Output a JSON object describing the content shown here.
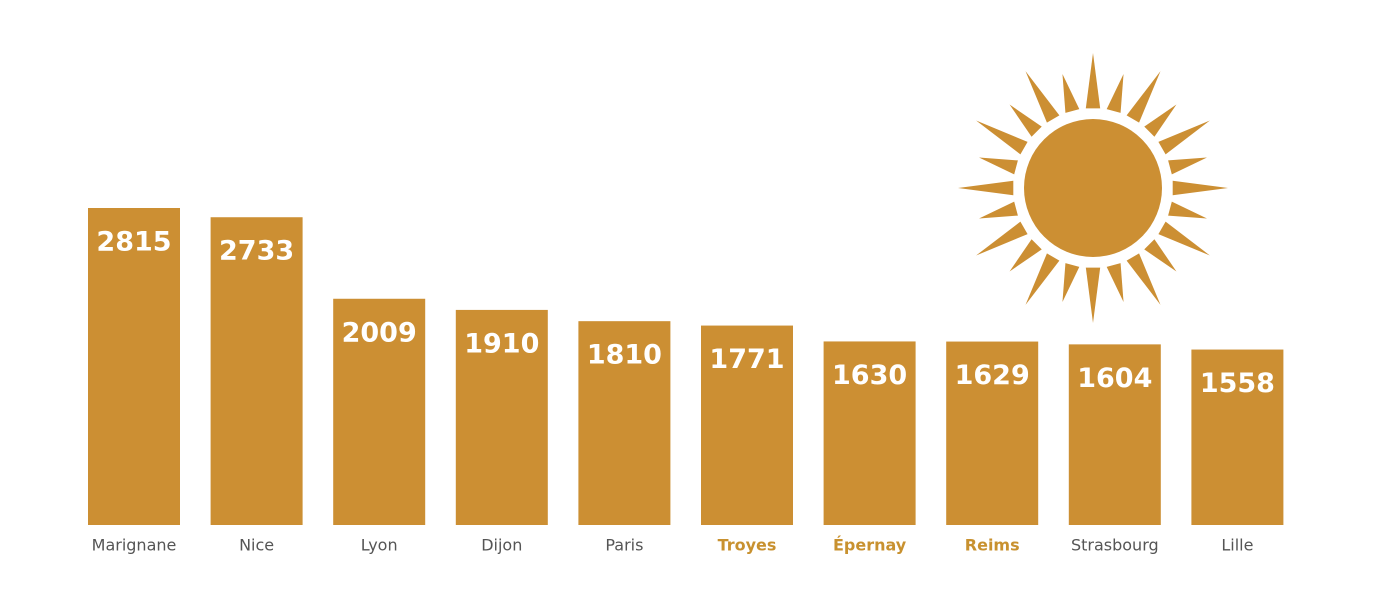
{
  "chart_data": {
    "type": "bar",
    "categories": [
      "Marignane",
      "Nice",
      "Lyon",
      "Dijon",
      "Paris",
      "Troyes",
      "Épernay",
      "Reims",
      "Strasbourg",
      "Lille"
    ],
    "values": [
      2815,
      2733,
      2009,
      1910,
      1810,
      1771,
      1630,
      1629,
      1604,
      1558
    ],
    "color": "#cc8f33",
    "highlight_indices": [
      5,
      6,
      7
    ]
  }
}
